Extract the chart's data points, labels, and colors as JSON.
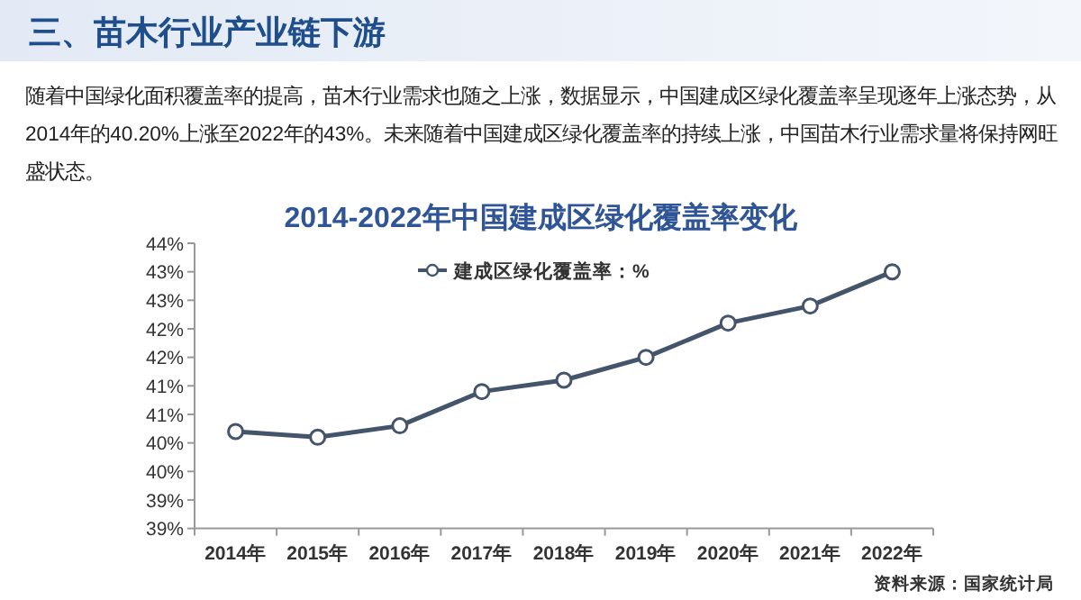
{
  "chart_data": {
    "type": "line",
    "title": "2014-2022年中国建成区绿化覆盖率变化",
    "annotations": [
      "三、苗木行业产业链下游",
      "随着中国绿化面积覆盖率的提高，苗木行业需求也随之上涨，数据显示，中国建成区绿化覆盖率呈现逐年上涨态势，从2014年的40.20%上涨至2022年的43%。未来随着中国建成区绿化覆盖率的持续上涨，中国苗木行业需求量将保持网旺盛状态。",
      "资料来源：国家统计局"
    ],
    "categories": [
      "2014年",
      "2015年",
      "2016年",
      "2017年",
      "2018年",
      "2019年",
      "2020年",
      "2021年",
      "2022年"
    ],
    "series": [
      {
        "name": "建成区绿化覆盖率：%",
        "color": "#44546a",
        "values": [
          40.2,
          40.1,
          40.3,
          40.9,
          41.1,
          41.5,
          42.1,
          42.4,
          43.0
        ]
      }
    ],
    "ylim": [
      38.5,
      43.5
    ],
    "yticks": [
      {
        "value": 38.5,
        "label": "39%"
      },
      {
        "value": 39,
        "label": "39%"
      },
      {
        "value": 39.5,
        "label": "40%"
      },
      {
        "value": 40,
        "label": "40%"
      },
      {
        "value": 40.5,
        "label": "41%"
      },
      {
        "value": 41,
        "label": "41%"
      },
      {
        "value": 41.5,
        "label": "42%"
      },
      {
        "value": 42,
        "label": "42%"
      },
      {
        "value": 42.5,
        "label": "43%"
      },
      {
        "value": 43,
        "label": "43%"
      },
      {
        "value": 43.5,
        "label": "44%"
      }
    ],
    "legend": "top",
    "marker": "circle",
    "line_style": "solid"
  }
}
